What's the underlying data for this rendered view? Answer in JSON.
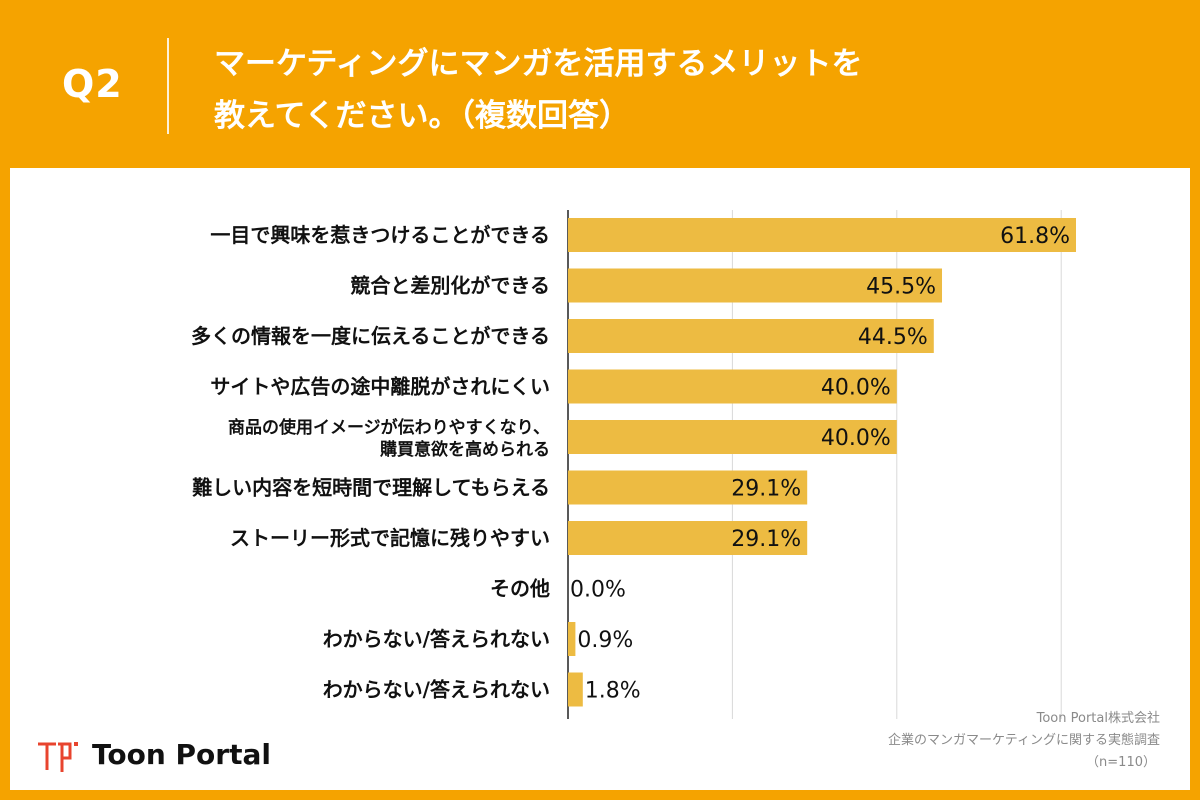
{
  "header": {
    "q_label": "Q2",
    "title_line1": "マーケティングにマンガを活用するメリットを",
    "title_line2": "教えてください。（複数回答）"
  },
  "colors": {
    "background": "#F5A300",
    "bar": "#EDBB42",
    "panel": "#ffffff",
    "grid": "#d9d9d9",
    "logo_red": "#E8442E"
  },
  "chart_data": {
    "type": "bar",
    "orientation": "horizontal",
    "categories": [
      [
        "一目で興味を惹きつけることができる"
      ],
      [
        "競合と差別化ができる"
      ],
      [
        "多くの情報を一度に伝えることができる"
      ],
      [
        "サイトや広告の途中離脱がされにくい"
      ],
      [
        "商品の使用イメージが伝わりやすくなり、",
        "購買意欲を高められる"
      ],
      [
        "難しい内容を短時間で理解してもらえる"
      ],
      [
        "ストーリー形式で記憶に残りやすい"
      ],
      [
        "その他"
      ],
      [
        "わからない/答えられない"
      ],
      [
        "わからない/答えられない"
      ]
    ],
    "values": [
      61.8,
      45.5,
      44.5,
      40.0,
      40.0,
      29.1,
      29.1,
      0.0,
      0.9,
      1.8
    ],
    "value_labels": [
      "61.8%",
      "45.5%",
      "44.5%",
      "40.0%",
      "40.0%",
      "29.1%",
      "29.1%",
      "0.0%",
      "0.9%",
      "1.8%"
    ],
    "xlim": [
      0,
      70
    ],
    "grid": true,
    "axis_tick_labels_shown": false
  },
  "footer": {
    "logo_text": "Toon Portal",
    "credit_company": "Toon Portal株式会社",
    "credit_survey": "企業のマンガマーケティングに関する実態調査",
    "credit_n": "（n=110）"
  }
}
